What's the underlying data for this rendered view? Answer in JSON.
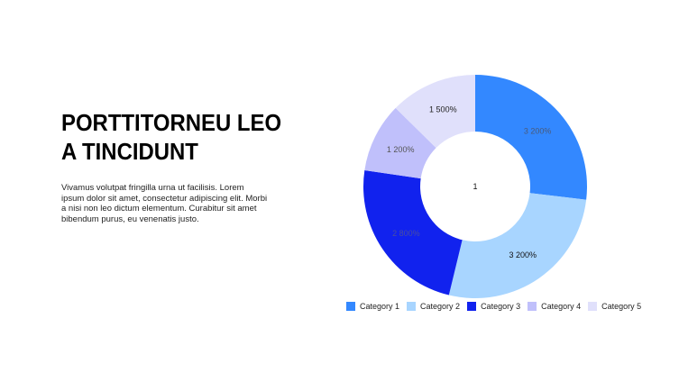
{
  "heading": "PORTTITORNEU LEO A TINCIDUNT",
  "body_text": "Vivamus volutpat fringilla urna ut facilisis. Lorem ipsum dolor sit amet, consectetur adipiscing elit. Morbi a nisi non leo dictum elementum. Curabitur sit amet bibendum purus, eu venenatis justo.",
  "chart_data": {
    "type": "pie",
    "variant": "donut",
    "center_label": "1",
    "categories": [
      "Category 1",
      "Category 2",
      "Category 3",
      "Category 4",
      "Category 5"
    ],
    "values": [
      32,
      32,
      28,
      12,
      15
    ],
    "data_labels": [
      "3 200%",
      "3 200%",
      "2 800%",
      "1 200%",
      "1 500%"
    ],
    "colors": [
      "#3388ff",
      "#a8d5ff",
      "#1122ee",
      "#c0c0fb",
      "#e0e0fb"
    ],
    "label_colors": [
      "#4a5a7a",
      "#111111",
      "#4a4fa0",
      "#555555",
      "#222222"
    ],
    "legend": "bottom",
    "start": "top-clockwise"
  }
}
